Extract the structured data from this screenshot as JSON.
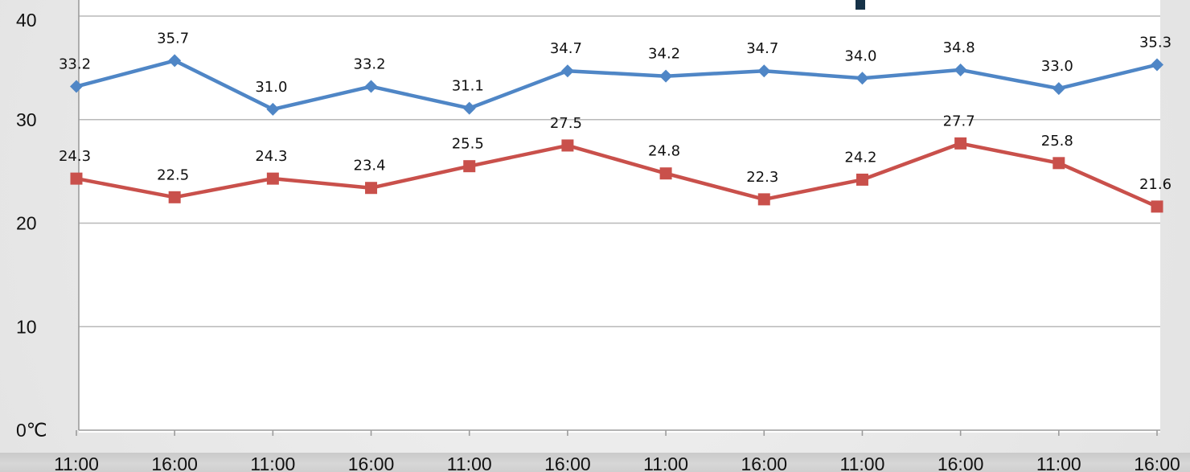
{
  "chart_data": {
    "type": "line",
    "title": "",
    "xlabel": "",
    "ylabel": "",
    "ylim": [
      0,
      40
    ],
    "yticks": [
      0,
      10,
      20,
      30,
      40
    ],
    "y_unit": "℃",
    "grid": true,
    "legend": "none",
    "categories": [
      "11:00",
      "16:00",
      "11:00",
      "16:00",
      "11:00",
      "16:00",
      "11:00",
      "16:00",
      "11:00",
      "16:00",
      "11:00",
      "16:00"
    ],
    "series": [
      {
        "values": [
          33.2,
          35.7,
          31.0,
          33.2,
          31.1,
          34.7,
          34.2,
          34.7,
          34.0,
          34.8,
          33.0,
          35.3
        ],
        "labels": [
          "33.2",
          "35.7",
          "31.0",
          "33.2",
          "31.1",
          "34.7",
          "34.2",
          "34.7",
          "34.0",
          "34.8",
          "33.0",
          "35.3"
        ],
        "color": "#4f86c6",
        "marker": "diamond"
      },
      {
        "values": [
          24.3,
          22.5,
          24.3,
          23.4,
          25.5,
          27.5,
          24.8,
          22.3,
          24.2,
          27.7,
          25.8,
          21.6
        ],
        "labels": [
          "24.3",
          "22.5",
          "24.3",
          "23.4",
          "25.5",
          "27.5",
          "24.8",
          "22.3",
          "24.2",
          "27.7",
          "25.8",
          "21.6"
        ],
        "color": "#c9504b",
        "marker": "square"
      }
    ]
  },
  "colors": {
    "background": "#e9e9e9",
    "plot_background": "#ffffff",
    "gridline": "#b8b8b8",
    "axis": "#9c9c9c",
    "text": "#111111",
    "top_mark": "#163248"
  }
}
